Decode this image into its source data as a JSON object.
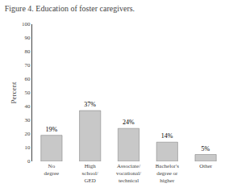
{
  "chart_data": {
    "type": "bar",
    "title": "Figure 4. Education of foster caregivers.",
    "categories": [
      "No\ndegree",
      "High\nschool/\nGED",
      "Associate/\nvocational/\ntechnical",
      "Bachelor's\ndegree or\nhigher",
      "Other"
    ],
    "values": [
      19,
      37,
      24,
      14,
      5
    ],
    "value_labels": [
      "19%",
      "37%",
      "24%",
      "14%",
      "5%"
    ],
    "data_labels": true,
    "color": "#c8c8c8",
    "ylabel": "Percent",
    "ylim": [
      0,
      100
    ],
    "yticks": [
      0,
      10,
      20,
      30,
      40,
      50,
      60,
      70,
      80,
      90,
      100
    ],
    "grid": false
  }
}
